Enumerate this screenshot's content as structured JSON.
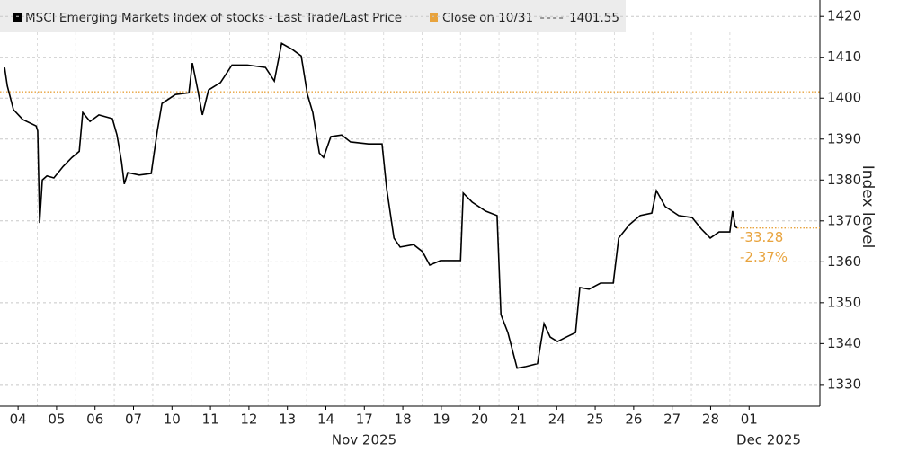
{
  "chart_data": {
    "type": "line",
    "legend_title": "MSCI Emerging Markets Index of stocks - Last Trade/Last Price",
    "y_axis_label": "Index level",
    "months": [
      "Nov 2025",
      "Dec 2025"
    ],
    "annotations": [
      "-33.28",
      "-2.37%"
    ],
    "annotation_color": "#e8a33d",
    "reference": {
      "name": "Close on 10/31",
      "value": 1401.55,
      "color": "#e8a33d"
    },
    "xlim": [
      -0.47,
      20.84
    ],
    "ylim": [
      1324.7,
      1424
    ],
    "xticks": [
      {
        "value": 0,
        "label": "04"
      },
      {
        "value": 1,
        "label": "05"
      },
      {
        "value": 2,
        "label": "06"
      },
      {
        "value": 3,
        "label": "07"
      },
      {
        "value": 4,
        "label": "10"
      },
      {
        "value": 5,
        "label": "11"
      },
      {
        "value": 6,
        "label": "12"
      },
      {
        "value": 7,
        "label": "13"
      },
      {
        "value": 8,
        "label": "14"
      },
      {
        "value": 9,
        "label": "17"
      },
      {
        "value": 10,
        "label": "18"
      },
      {
        "value": 11,
        "label": "19"
      },
      {
        "value": 12,
        "label": "20"
      },
      {
        "value": 13,
        "label": "21"
      },
      {
        "value": 14,
        "label": "24"
      },
      {
        "value": 15,
        "label": "25"
      },
      {
        "value": 16,
        "label": "26"
      },
      {
        "value": 17,
        "label": "27"
      },
      {
        "value": 18,
        "label": "28"
      },
      {
        "value": 19,
        "label": "01"
      }
    ],
    "yticks": [
      1330,
      1340,
      1350,
      1360,
      1370,
      1380,
      1390,
      1400,
      1410,
      1420
    ],
    "grid": true,
    "series": [
      {
        "name": "MSCI Emerging Markets Index of stocks",
        "color": "#000000",
        "x": [
          -0.35,
          -0.28,
          -0.12,
          0.12,
          0.47,
          0.51,
          0.56,
          0.63,
          0.75,
          0.93,
          1.17,
          1.4,
          1.59,
          1.68,
          1.87,
          2.1,
          2.45,
          2.57,
          2.69,
          2.76,
          2.85,
          3.15,
          3.46,
          3.62,
          3.74,
          4.09,
          4.44,
          4.53,
          4.67,
          4.79,
          4.95,
          5.26,
          5.56,
          5.96,
          6.43,
          6.66,
          6.85,
          7.13,
          7.36,
          7.52,
          7.66,
          7.83,
          7.94,
          8.13,
          8.41,
          8.64,
          9.11,
          9.46,
          9.58,
          9.77,
          9.93,
          10.28,
          10.51,
          10.7,
          10.98,
          11.33,
          11.5,
          11.57,
          11.8,
          12.15,
          12.45,
          12.55,
          12.73,
          12.97,
          13.2,
          13.5,
          13.67,
          13.83,
          14.02,
          14.25,
          14.49,
          14.6,
          14.84,
          15.14,
          15.47,
          15.61,
          15.89,
          16.17,
          16.47,
          16.59,
          16.82,
          17.17,
          17.52,
          17.76,
          17.99,
          18.22,
          18.5,
          18.57,
          18.64,
          18.69
        ],
        "values": [
          1407.5,
          1403,
          1397.2,
          1394.8,
          1393.2,
          1392,
          1369.5,
          1380,
          1381,
          1380.5,
          1383.3,
          1385.5,
          1387,
          1396.5,
          1394.3,
          1395.9,
          1395,
          1391,
          1384.4,
          1379,
          1381.8,
          1381.2,
          1381.6,
          1392.1,
          1398.7,
          1400.9,
          1401.3,
          1408.6,
          1402,
          1395.9,
          1402,
          1403.8,
          1408.1,
          1408.1,
          1407.5,
          1404.2,
          1413.4,
          1411.9,
          1410.3,
          1400.9,
          1396.5,
          1386.6,
          1385.5,
          1390.6,
          1391,
          1389.3,
          1388.8,
          1388.8,
          1377.9,
          1365.8,
          1363.6,
          1364.2,
          1362.5,
          1359.2,
          1360.3,
          1360.3,
          1360.3,
          1376.8,
          1374.6,
          1372.4,
          1371.3,
          1347.1,
          1342.7,
          1334,
          1334.4,
          1335.1,
          1344.9,
          1341.6,
          1340.5,
          1341.6,
          1342.7,
          1353.7,
          1353.3,
          1354.8,
          1354.8,
          1365.8,
          1369.1,
          1371.3,
          1371.9,
          1377.4,
          1373.5,
          1371.3,
          1370.8,
          1368,
          1365.8,
          1367.3,
          1367.3,
          1372.4,
          1368.6,
          1368.27
        ]
      }
    ]
  }
}
